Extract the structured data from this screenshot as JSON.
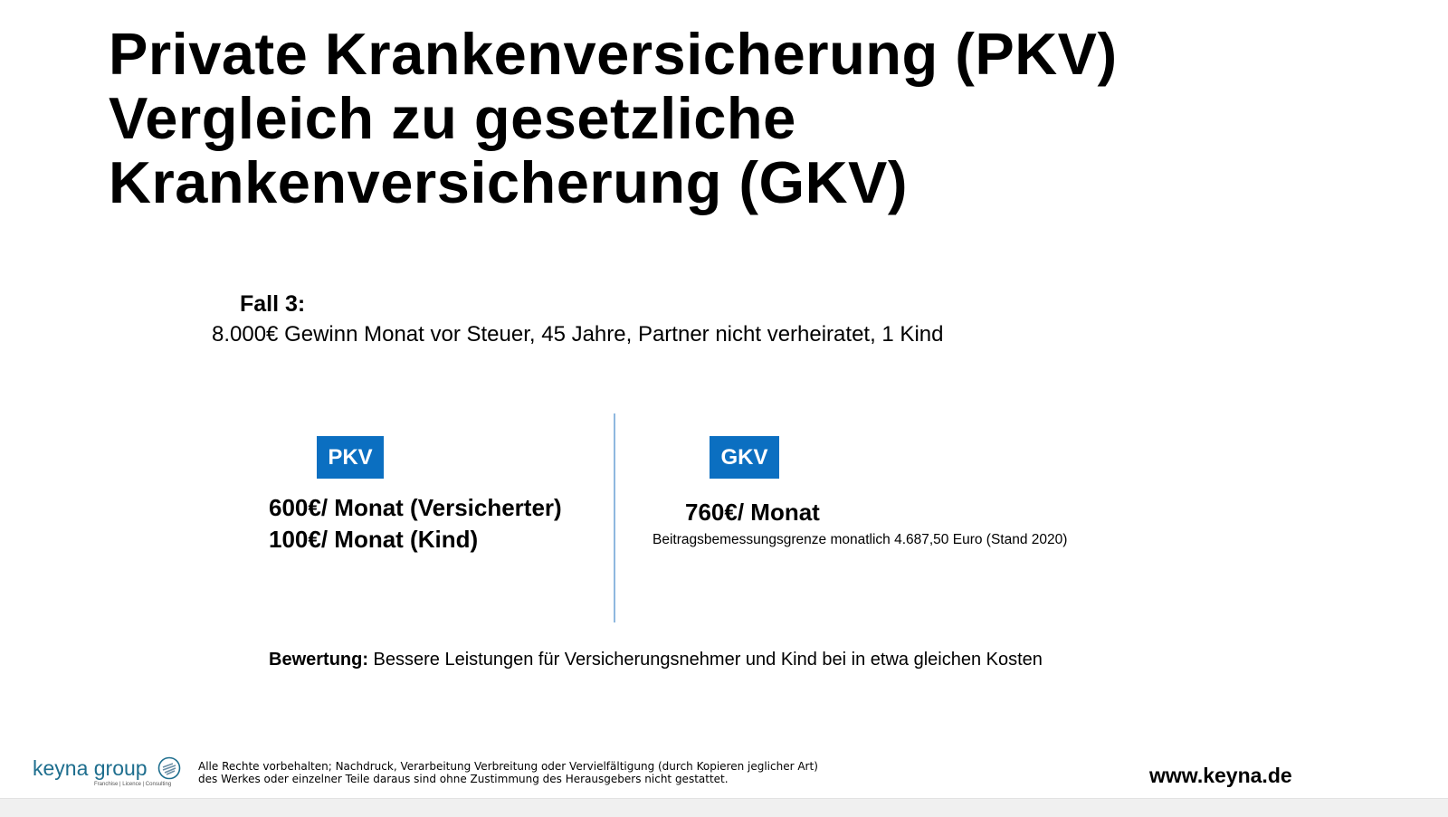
{
  "title": {
    "lines": [
      "Private Krankenversicherung (PKV)",
      "Vergleich zu gesetzliche",
      "Krankenversicherung (GKV)"
    ]
  },
  "case": {
    "label": "Fall 3:",
    "description": "8.000€ Gewinn Monat vor Steuer, 45 Jahre, Partner nicht verheiratet, 1 Kind"
  },
  "pkv": {
    "badge": "PKV",
    "line1": "600€/ Monat (Versicherter)",
    "line2": "100€/ Monat (Kind)"
  },
  "gkv": {
    "badge": "GKV",
    "line1": "760€/ Monat",
    "note": "Beitragsbemessungsgrenze monatlich 4.687,50 Euro (Stand 2020)"
  },
  "rating": {
    "label": "Bewertung:",
    "text": " Bessere Leistungen für Versicherungsnehmer und Kind bei in etwa gleichen Kosten"
  },
  "footer": {
    "logo_text": "keyna group",
    "logo_sub": "Franchise | Licence | Consulting",
    "copyright_line1": "Alle Rechte vorbehalten; Nachdruck, Verarbeitung Verbreitung oder Vervielfältigung (durch Kopieren jeglicher Art)",
    "copyright_line2": "des Werkes oder einzelner Teile daraus sind ohne Zustimmung des Herausgebers nicht gestattet.",
    "website": "www.keyna.de"
  },
  "colors": {
    "badge": "#0b6fc1",
    "divider": "#8fb8df",
    "logo": "#1e6e8e"
  }
}
